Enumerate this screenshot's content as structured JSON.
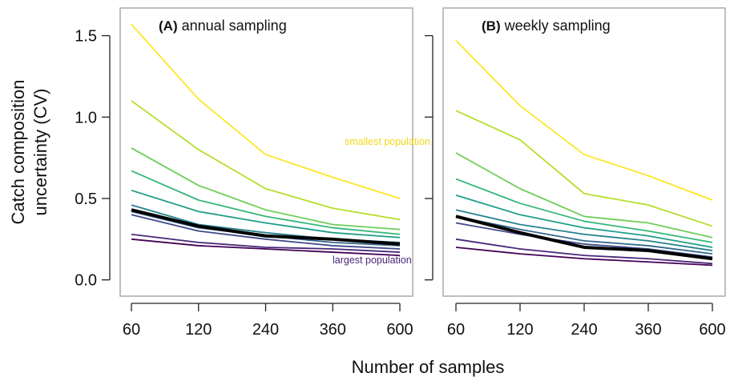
{
  "chart_data": [
    {
      "type": "line",
      "label": "(A)",
      "title": "annual sampling",
      "categories": [
        "60",
        "120",
        "240",
        "360",
        "600"
      ],
      "ylim": [
        -0.1,
        1.67
      ],
      "yticks": [
        {
          "value": 0,
          "label": "0.0"
        },
        {
          "value": 0.5,
          "label": "0.5"
        },
        {
          "value": 1,
          "label": "1.0"
        },
        {
          "value": 1.5,
          "label": "1.5"
        }
      ],
      "annotations": [
        {
          "text": "smallest population",
          "color": "#f2d81c"
        },
        {
          "text": "largest population",
          "color": "#482878"
        }
      ],
      "series": [
        {
          "color": "#fde725",
          "values": [
            1.57,
            1.11,
            0.77,
            0.63,
            0.5
          ]
        },
        {
          "color": "#b5de2b",
          "values": [
            1.1,
            0.8,
            0.56,
            0.44,
            0.37
          ]
        },
        {
          "color": "#6ece58",
          "values": [
            0.81,
            0.58,
            0.43,
            0.34,
            0.31
          ]
        },
        {
          "color": "#35b779",
          "values": [
            0.67,
            0.49,
            0.39,
            0.32,
            0.28
          ]
        },
        {
          "color": "#1f9e89",
          "values": [
            0.55,
            0.42,
            0.35,
            0.29,
            0.26
          ]
        },
        {
          "color": "#26828e",
          "values": [
            0.46,
            0.34,
            0.29,
            0.25,
            0.23
          ]
        },
        {
          "color": "#31688e",
          "values": [
            0.42,
            0.32,
            0.27,
            0.23,
            0.21
          ]
        },
        {
          "color": "#3e4989",
          "values": [
            0.4,
            0.3,
            0.25,
            0.21,
            0.19
          ]
        },
        {
          "color": "#482878",
          "values": [
            0.28,
            0.23,
            0.2,
            0.19,
            0.17
          ]
        },
        {
          "color": "#440154",
          "values": [
            0.25,
            0.21,
            0.19,
            0.17,
            0.15
          ]
        },
        {
          "color": "#000000",
          "width": 4,
          "values": [
            0.43,
            0.33,
            0.27,
            0.25,
            0.22
          ]
        }
      ]
    },
    {
      "type": "line",
      "label": "(B)",
      "title": "weekly sampling",
      "categories": [
        "60",
        "120",
        "240",
        "360",
        "600"
      ],
      "ylim": [
        -0.1,
        1.67
      ],
      "yticks": [
        0,
        0.5,
        1,
        1.5
      ],
      "series": [
        {
          "color": "#fde725",
          "values": [
            1.47,
            1.07,
            0.77,
            0.64,
            0.49
          ]
        },
        {
          "color": "#b5de2b",
          "values": [
            1.04,
            0.86,
            0.53,
            0.46,
            0.33
          ]
        },
        {
          "color": "#6ece58",
          "values": [
            0.78,
            0.56,
            0.39,
            0.35,
            0.26
          ]
        },
        {
          "color": "#35b779",
          "values": [
            0.62,
            0.47,
            0.36,
            0.3,
            0.23
          ]
        },
        {
          "color": "#1f9e89",
          "values": [
            0.52,
            0.4,
            0.32,
            0.27,
            0.2
          ]
        },
        {
          "color": "#26828e",
          "values": [
            0.43,
            0.34,
            0.28,
            0.24,
            0.18
          ]
        },
        {
          "color": "#31688e",
          "values": [
            0.39,
            0.31,
            0.24,
            0.21,
            0.16
          ]
        },
        {
          "color": "#3e4989",
          "values": [
            0.35,
            0.28,
            0.22,
            0.19,
            0.14
          ]
        },
        {
          "color": "#482878",
          "values": [
            0.25,
            0.19,
            0.15,
            0.13,
            0.1
          ]
        },
        {
          "color": "#440154",
          "values": [
            0.2,
            0.16,
            0.13,
            0.11,
            0.09
          ]
        },
        {
          "color": "#000000",
          "width": 4,
          "values": [
            0.39,
            0.29,
            0.2,
            0.18,
            0.13
          ]
        }
      ]
    }
  ],
  "shared": {
    "xlabel": "Number of samples",
    "ylabel": [
      "Catch composition",
      "uncertainty (CV)"
    ]
  }
}
